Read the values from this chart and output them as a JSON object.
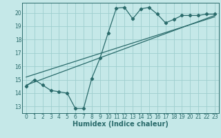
{
  "xlabel": "Humidex (Indice chaleur)",
  "bg_color": "#c5e8e8",
  "grid_color": "#9ecece",
  "line_color": "#2a6b6b",
  "xlim": [
    -0.5,
    23.5
  ],
  "ylim": [
    12.5,
    20.75
  ],
  "yticks": [
    13,
    14,
    15,
    16,
    17,
    18,
    19,
    20
  ],
  "xticks": [
    0,
    1,
    2,
    3,
    4,
    5,
    6,
    7,
    8,
    9,
    10,
    11,
    12,
    13,
    14,
    15,
    16,
    17,
    18,
    19,
    20,
    21,
    22,
    23
  ],
  "curve_x": [
    0,
    1,
    2,
    3,
    4,
    5,
    6,
    7,
    8,
    9,
    10,
    11,
    12,
    13,
    14,
    15,
    16,
    17,
    18,
    19,
    20,
    21,
    22,
    23
  ],
  "curve_y": [
    14.5,
    15.0,
    14.6,
    14.2,
    14.1,
    14.0,
    12.85,
    12.85,
    15.1,
    16.6,
    18.5,
    20.35,
    20.4,
    19.55,
    20.3,
    20.4,
    19.9,
    19.25,
    19.5,
    19.8,
    19.8,
    19.8,
    19.9,
    19.9
  ],
  "line1_x": [
    0,
    23
  ],
  "line1_y": [
    15.2,
    19.7
  ],
  "line2_x": [
    0,
    23
  ],
  "line2_y": [
    14.6,
    19.8
  ],
  "tick_fontsize": 5.5,
  "label_fontsize": 7
}
